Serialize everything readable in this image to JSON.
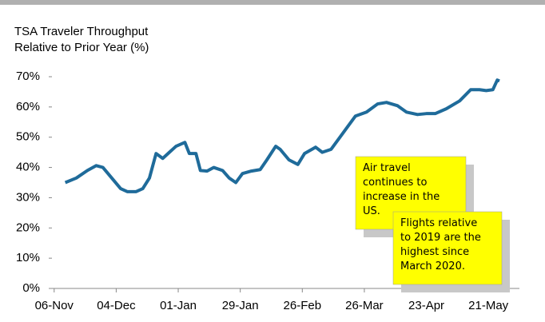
{
  "chart_data": {
    "type": "line",
    "title": [
      "TSA Traveler Throughput",
      "Relative to Prior Year (%)"
    ],
    "x": [
      5,
      10,
      15,
      19,
      22,
      26,
      30,
      33,
      37,
      40,
      43,
      46,
      49,
      52,
      55,
      59,
      61,
      64,
      66,
      69,
      72,
      76,
      79,
      82,
      85,
      89,
      93,
      96,
      100,
      102,
      106,
      110,
      113,
      118,
      121,
      125,
      129,
      132,
      136,
      141,
      146,
      150,
      155,
      159,
      164,
      168,
      172,
      177,
      183,
      188,
      192,
      195,
      198,
      200,
      201
    ],
    "series": [
      {
        "color": "#1f6b9a",
        "values": [
          35,
          36.5,
          39,
          40.6,
          40,
          36.5,
          33,
          32,
          32,
          33,
          36.5,
          44.6,
          43,
          45,
          47,
          48.3,
          44.6,
          44.6,
          39,
          38.8,
          40,
          39,
          36.5,
          35,
          38,
          38.8,
          39.3,
          42.5,
          47,
          46,
          42.5,
          41,
          44.6,
          46.7,
          45,
          46,
          50,
          53,
          57,
          58.3,
          61,
          61.5,
          60.4,
          58.3,
          57.5,
          57.8,
          57.8,
          59.4,
          62,
          65.7,
          65.7,
          65.4,
          65.7,
          68.9,
          68.6
        ]
      }
    ],
    "xlim": [
      -1,
      210
    ],
    "xticks": [
      {
        "value": 0,
        "label": "06-Nov"
      },
      {
        "value": 28,
        "label": "04-Dec"
      },
      {
        "value": 56,
        "label": "01-Jan"
      },
      {
        "value": 84,
        "label": "29-Jan"
      },
      {
        "value": 112,
        "label": "26-Feb"
      },
      {
        "value": 140,
        "label": "26-Mar"
      },
      {
        "value": 168,
        "label": "23-Apr"
      },
      {
        "value": 196,
        "label": "21-May"
      }
    ],
    "ylim": [
      0,
      70
    ],
    "yticks": [
      {
        "value": 0,
        "label": "0%"
      },
      {
        "value": 10,
        "label": "10%"
      },
      {
        "value": 20,
        "label": "20%"
      },
      {
        "value": 30,
        "label": "30%"
      },
      {
        "value": 40,
        "label": "40%"
      },
      {
        "value": 50,
        "label": "50%"
      },
      {
        "value": 60,
        "label": "60%"
      },
      {
        "value": 70,
        "label": "70%"
      }
    ],
    "annotations": [
      {
        "lines": [
          "Air travel",
          "continues to",
          "increase in the",
          "US."
        ]
      },
      {
        "lines": [
          "Flights relative",
          "to 2019 are the",
          "highest since",
          "March 2020."
        ]
      }
    ]
  }
}
